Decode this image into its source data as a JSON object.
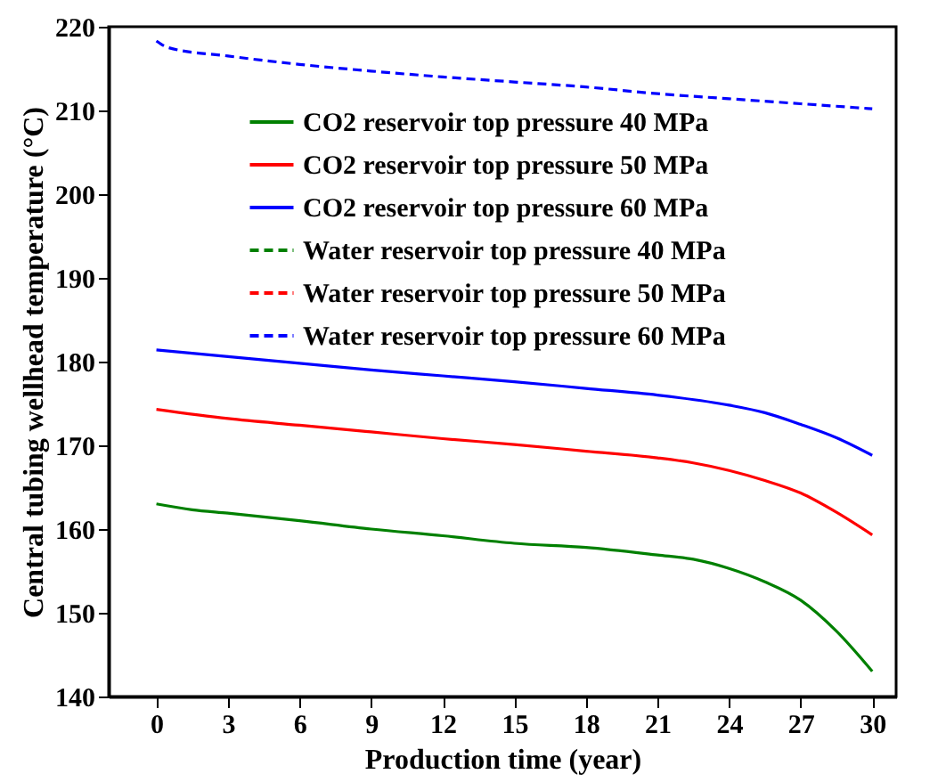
{
  "chart_data": {
    "type": "line",
    "xlabel": "Production time (year)",
    "ylabel": "Central tubing wellhead temperature (°C)",
    "xlim": [
      -2,
      31
    ],
    "xticks": [
      0,
      3,
      6,
      9,
      12,
      15,
      18,
      21,
      24,
      27,
      30
    ],
    "ylim": [
      140,
      220
    ],
    "yticks": [
      140,
      150,
      160,
      170,
      180,
      190,
      200,
      210,
      220
    ],
    "grid": false,
    "legend": "top",
    "marker": "none",
    "series": [
      {
        "name": "CO2 reservoir top pressure 40 MPa",
        "color": "#008000",
        "line_style": "solid",
        "x": [
          0,
          1.5,
          3,
          6,
          9,
          12,
          15,
          18,
          21,
          22.5,
          24,
          25.5,
          27,
          28.5,
          30
        ],
        "values": [
          163.0,
          162.3,
          161.9,
          161.0,
          160.0,
          159.2,
          158.3,
          157.8,
          156.9,
          156.4,
          155.3,
          153.7,
          151.5,
          147.8,
          143.0
        ]
      },
      {
        "name": "CO2 reservoir top pressure 50 MPa",
        "color": "#ff0000",
        "line_style": "solid",
        "x": [
          0,
          3,
          6,
          9,
          12,
          15,
          18,
          21,
          22.5,
          24,
          25.5,
          27,
          28.5,
          30
        ],
        "values": [
          174.3,
          173.2,
          172.4,
          171.6,
          170.8,
          170.1,
          169.3,
          168.5,
          167.9,
          167.0,
          165.8,
          164.3,
          162.0,
          159.3
        ]
      },
      {
        "name": "CO2 reservoir top pressure 60 MPa",
        "color": "#0000ff",
        "line_style": "solid",
        "x": [
          0,
          3,
          6,
          9,
          12,
          15,
          18,
          21,
          24,
          25.5,
          27,
          28.5,
          30
        ],
        "values": [
          181.4,
          180.6,
          179.8,
          179.0,
          178.3,
          177.6,
          176.8,
          176.0,
          174.8,
          173.9,
          172.5,
          170.9,
          168.8
        ]
      },
      {
        "name": "Water reservoir top pressure 40 MPa",
        "color": "#008000",
        "line_style": "dashed"
      },
      {
        "name": "Water reservoir top pressure 50 MPa",
        "color": "#ff0000",
        "line_style": "dashed"
      },
      {
        "name": "Water reservoir top pressure 60 MPa",
        "color": "#0000ff",
        "line_style": "dashed",
        "x": [
          0,
          0.5,
          3,
          6,
          9,
          12,
          15,
          18,
          21,
          24,
          27,
          30
        ],
        "values": [
          218.3,
          217.5,
          216.5,
          215.5,
          214.7,
          214.0,
          213.4,
          212.8,
          212.0,
          211.4,
          210.8,
          210.2
        ]
      }
    ]
  }
}
